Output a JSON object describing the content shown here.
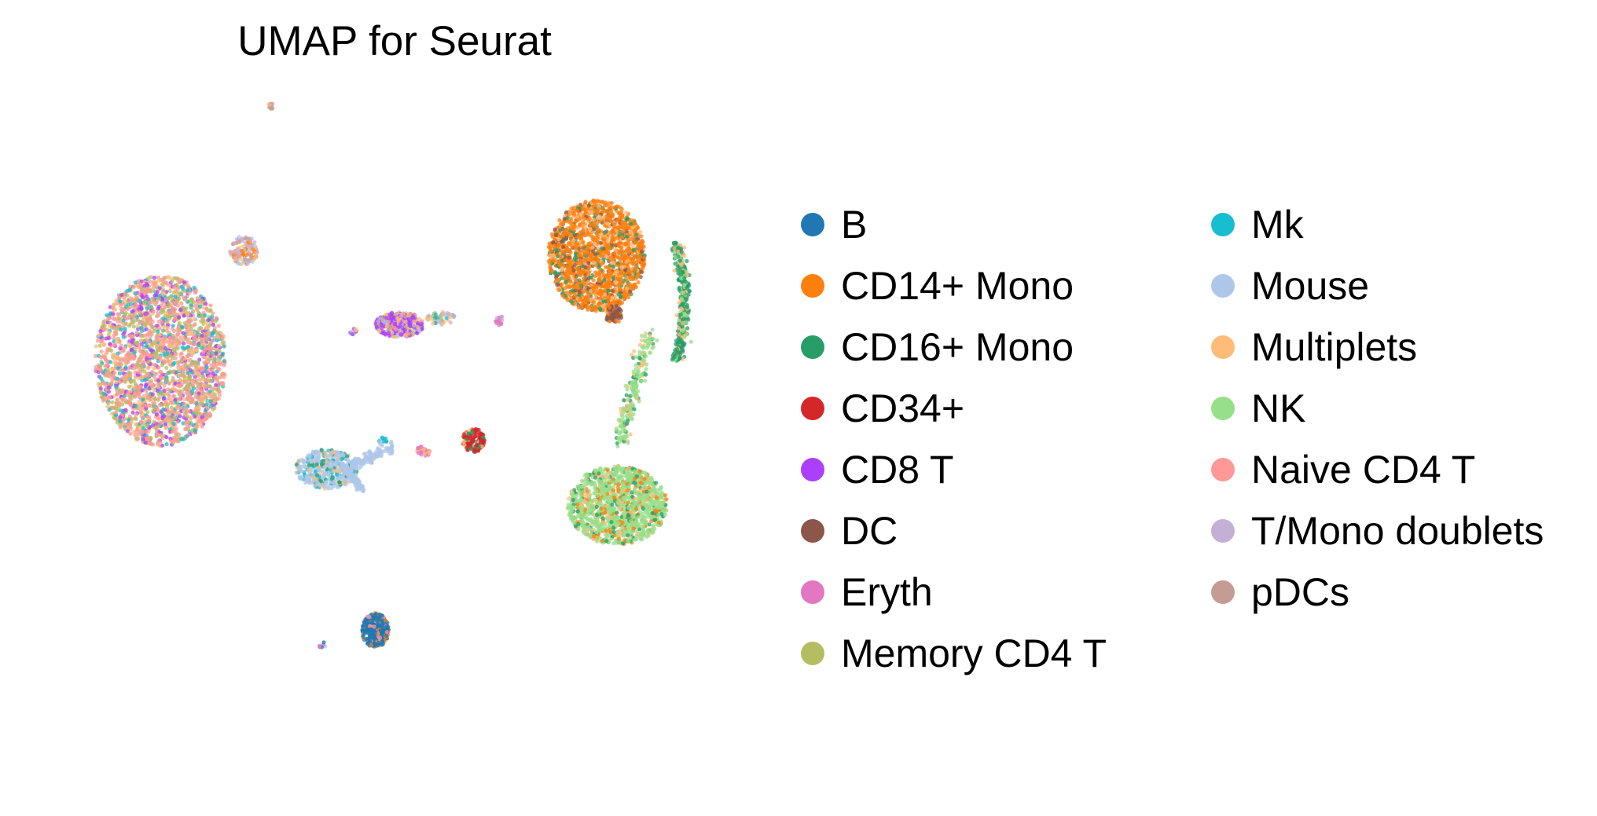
{
  "chart_data": {
    "type": "scatter",
    "title": "UMAP for Seurat",
    "xlabel": "",
    "ylabel": "",
    "grid": false,
    "legend_placement": "right",
    "legend": [
      {
        "name": "B",
        "color": "#1f77b4"
      },
      {
        "name": "CD14+ Mono",
        "color": "#ff7f0e"
      },
      {
        "name": "CD16+ Mono",
        "color": "#279e68"
      },
      {
        "name": "CD34+",
        "color": "#d62728"
      },
      {
        "name": "CD8 T",
        "color": "#aa40fc"
      },
      {
        "name": "DC",
        "color": "#8c564b"
      },
      {
        "name": "Eryth",
        "color": "#e377c2"
      },
      {
        "name": "Memory CD4 T",
        "color": "#b5bd61"
      },
      {
        "name": "Mk",
        "color": "#17becf"
      },
      {
        "name": "Mouse",
        "color": "#aec7e8"
      },
      {
        "name": "Multiplets",
        "color": "#ffbb78"
      },
      {
        "name": "NK",
        "color": "#98df8a"
      },
      {
        "name": "Naive CD4 T",
        "color": "#ff9896"
      },
      {
        "name": "T/Mono doublets",
        "color": "#c5b0d5"
      },
      {
        "name": "pDCs",
        "color": "#c49c94"
      }
    ],
    "clusters": [
      {
        "label": "Naive CD4 T",
        "mix": [
          "Memory CD4 T",
          "Naive CD4 T",
          "Naive CD4 T",
          "Memory CD4 T",
          "Naive CD4 T",
          "Mk",
          "Multiplets",
          "CD8 T"
        ],
        "cx": 0.17,
        "cy": 0.52,
        "rx": 0.095,
        "ry": 0.13,
        "n": 2400,
        "shape": "blob"
      },
      {
        "label": "CD14+ Mono",
        "mix": [
          "CD14+ Mono",
          "CD14+ Mono",
          "CD14+ Mono",
          "CD14+ Mono",
          "CD14+ Mono",
          "CD14+ Mono",
          "Multiplets",
          "CD16+ Mono",
          "DC"
        ],
        "cx": 0.8,
        "cy": 0.36,
        "rx": 0.07,
        "ry": 0.085,
        "n": 1700,
        "shape": "blob"
      },
      {
        "label": "NK",
        "mix": [
          "NK",
          "NK",
          "NK",
          "NK",
          "NK",
          "NK",
          "Multiplets",
          "CD16+ Mono",
          "CD14+ Mono"
        ],
        "cx": 0.83,
        "cy": 0.74,
        "rx": 0.072,
        "ry": 0.06,
        "n": 1300,
        "shape": "blob"
      },
      {
        "label": "NK",
        "mix": [
          "NK",
          "NK",
          "NK",
          "Multiplets",
          "CD16+ Mono"
        ],
        "cx": 0.855,
        "cy": 0.56,
        "rx": 0.028,
        "ry": 0.085,
        "n": 220,
        "shape": "stem"
      },
      {
        "label": "CD16+ Mono",
        "mix": [
          "CD16+ Mono",
          "CD16+ Mono",
          "CD16+ Mono",
          "CD16+ Mono",
          "NK",
          "Multiplets"
        ],
        "cx": 0.915,
        "cy": 0.43,
        "rx": 0.012,
        "ry": 0.09,
        "n": 360,
        "shape": "arc"
      },
      {
        "label": "DC",
        "mix": [
          "DC",
          "DC",
          "DC",
          "CD14+ Mono"
        ],
        "cx": 0.825,
        "cy": 0.45,
        "rx": 0.012,
        "ry": 0.014,
        "n": 70,
        "shape": "blob"
      },
      {
        "label": "CD8 T",
        "mix": [
          "CD8 T",
          "CD8 T",
          "CD8 T",
          "CD8 T",
          "Multiplets",
          "T/Mono doublets",
          "Memory CD4 T",
          "Naive CD4 T",
          "Mouse"
        ],
        "cx": 0.515,
        "cy": 0.465,
        "rx": 0.035,
        "ry": 0.019,
        "n": 360,
        "shape": "blob"
      },
      {
        "label": "T/Mono doublets",
        "mix": [
          "T/Mono doublets",
          "Multiplets",
          "T/Mono doublets",
          "Mk",
          "Memory CD4 T"
        ],
        "cx": 0.575,
        "cy": 0.455,
        "rx": 0.022,
        "ry": 0.01,
        "n": 50,
        "shape": "blob"
      },
      {
        "label": "Eryth",
        "mix": [
          "Eryth",
          "Eryth",
          "T/Mono doublets"
        ],
        "cx": 0.659,
        "cy": 0.459,
        "rx": 0.007,
        "ry": 0.008,
        "n": 18,
        "shape": "blob"
      },
      {
        "label": "Eryth",
        "mix": [
          "Eryth",
          "Eryth",
          "Multiplets"
        ],
        "cx": 0.551,
        "cy": 0.657,
        "rx": 0.011,
        "ry": 0.008,
        "n": 30,
        "shape": "blob"
      },
      {
        "label": "CD34+",
        "mix": [
          "CD34+",
          "CD34+",
          "CD34+",
          "CD34+",
          "Multiplets",
          "CD16+ Mono"
        ],
        "cx": 0.622,
        "cy": 0.641,
        "rx": 0.016,
        "ry": 0.018,
        "n": 130,
        "shape": "blob"
      },
      {
        "label": "Mouse",
        "mix": [
          "Mouse",
          "Mouse",
          "Mouse",
          "Mouse",
          "Mouse",
          "Mouse",
          "CD16+ Mono",
          "Multiplets",
          "Mk"
        ],
        "cx": 0.41,
        "cy": 0.685,
        "rx": 0.045,
        "ry": 0.03,
        "n": 420,
        "shape": "blob"
      },
      {
        "label": "Mouse",
        "mix": [
          "Mouse"
        ],
        "cx": 0.445,
        "cy": 0.68,
        "rx": 0.06,
        "ry": 0.04,
        "n": 220,
        "shape": "arms"
      },
      {
        "label": "Mk",
        "mix": [
          "Mk",
          "Mk",
          "Mouse"
        ],
        "cx": 0.49,
        "cy": 0.642,
        "rx": 0.008,
        "ry": 0.006,
        "n": 14,
        "shape": "blob"
      },
      {
        "label": "Multiplets",
        "mix": [
          "Multiplets",
          "Mouse",
          "Naive CD4 T",
          "CD14+ Mono",
          "T/Mono doublets",
          "pDCs"
        ],
        "cx": 0.29,
        "cy": 0.352,
        "rx": 0.02,
        "ry": 0.022,
        "n": 120,
        "shape": "blob"
      },
      {
        "label": "B",
        "mix": [
          "B",
          "B",
          "B",
          "B",
          "B",
          "B",
          "CD14+ Mono",
          "Naive CD4 T"
        ],
        "cx": 0.48,
        "cy": 0.93,
        "rx": 0.02,
        "ry": 0.026,
        "n": 320,
        "shape": "blob"
      },
      {
        "label": "B",
        "mix": [
          "B",
          "Eryth",
          "Mouse"
        ],
        "cx": 0.404,
        "cy": 0.953,
        "rx": 0.005,
        "ry": 0.005,
        "n": 8,
        "shape": "blob"
      },
      {
        "label": "pDCs",
        "mix": [
          "pDCs",
          "pDCs",
          "Multiplets"
        ],
        "cx": 0.33,
        "cy": 0.133,
        "rx": 0.005,
        "ry": 0.005,
        "n": 10,
        "shape": "blob"
      },
      {
        "label": "Mouse",
        "mix": [
          "Mouse",
          "CD8 T",
          "Multiplets"
        ],
        "cx": 0.448,
        "cy": 0.475,
        "rx": 0.007,
        "ry": 0.005,
        "n": 12,
        "shape": "blob"
      }
    ]
  }
}
